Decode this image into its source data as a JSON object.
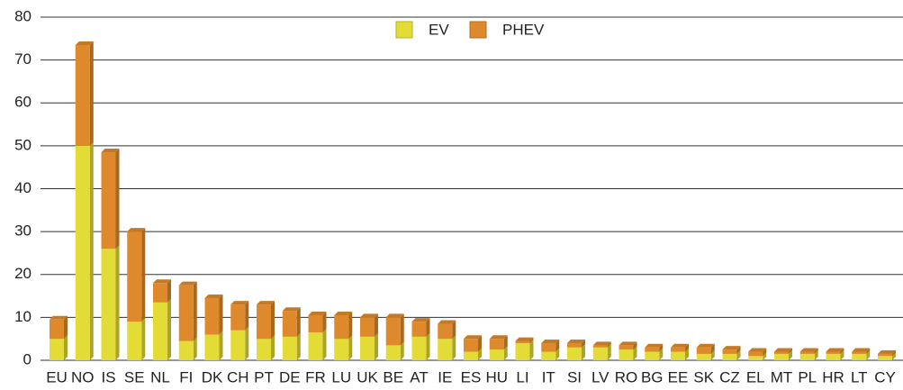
{
  "chart_data": {
    "type": "stacked-bar",
    "categories": [
      "EU",
      "NO",
      "IS",
      "SE",
      "NL",
      "FI",
      "DK",
      "CH",
      "PT",
      "DE",
      "FR",
      "LU",
      "UK",
      "BE",
      "AT",
      "IE",
      "ES",
      "HU",
      "LI",
      "IT",
      "SI",
      "LV",
      "RO",
      "BG",
      "EE",
      "SK",
      "CZ",
      "EL",
      "MT",
      "PL",
      "HR",
      "LT",
      "CY"
    ],
    "series": [
      {
        "name": "EV",
        "color": "#e3dc36",
        "values": [
          5,
          50,
          26,
          9,
          13.5,
          4.5,
          6,
          7,
          5,
          5.5,
          6.5,
          5,
          5.5,
          3.5,
          5.5,
          5,
          2,
          2.5,
          4,
          2,
          3,
          3,
          2.5,
          2,
          2,
          1.5,
          1.5,
          1,
          1.5,
          1.5,
          1.5,
          1.5,
          1
        ]
      },
      {
        "name": "PHEV",
        "color": "#de8a2c",
        "values": [
          4.5,
          23.5,
          22.5,
          21,
          4.5,
          13,
          8.5,
          6,
          8,
          6,
          4,
          5.5,
          4.5,
          6.5,
          3.5,
          3.5,
          3,
          2.5,
          0.5,
          2,
          1,
          0.5,
          1,
          1,
          1,
          1.5,
          1,
          1,
          0.5,
          0.5,
          0.5,
          0.5,
          0.5
        ]
      }
    ],
    "ylim": [
      0,
      80
    ],
    "yticks": [
      0,
      10,
      20,
      30,
      40,
      50,
      60,
      70,
      80
    ],
    "grid": true,
    "legend": "top"
  }
}
